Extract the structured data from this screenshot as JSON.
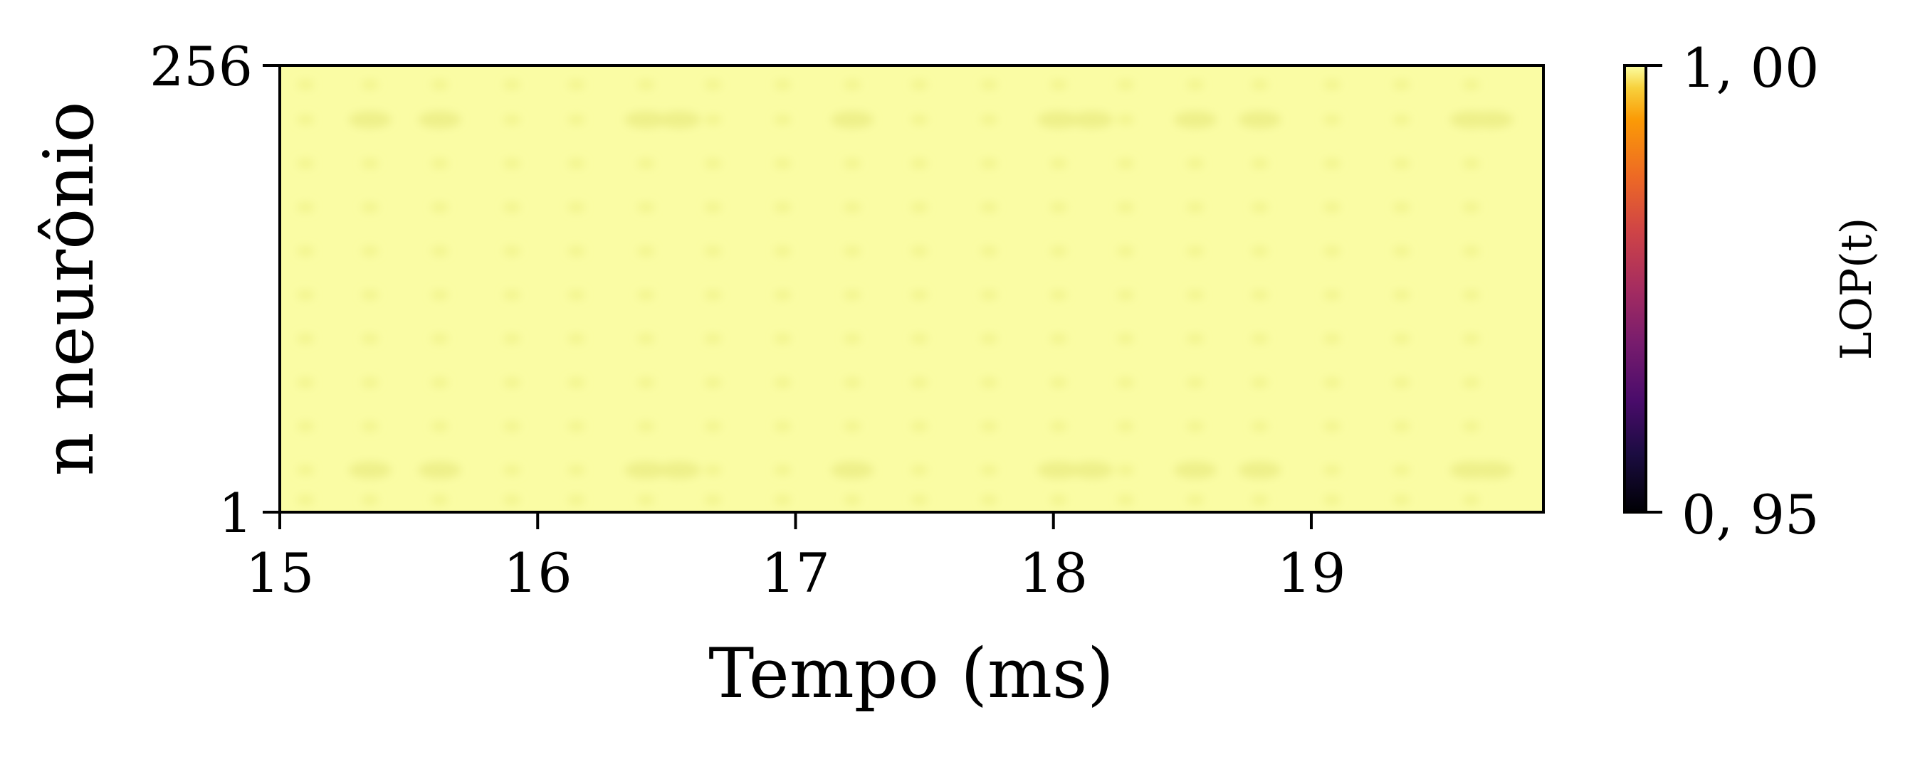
{
  "chart_data": {
    "type": "heatmap",
    "title": "",
    "xlabel": "Tempo (ms)",
    "ylabel": "n neurônio",
    "xlim": [
      15,
      19.9
    ],
    "ylim": [
      1,
      256
    ],
    "x_ticks": [
      15,
      16,
      17,
      18,
      19
    ],
    "x_tick_labels": [
      "15",
      "16",
      "17",
      "18",
      "19"
    ],
    "y_ticks": [
      1,
      256
    ],
    "y_tick_labels": [
      "1",
      "256"
    ],
    "colorbar": {
      "label": "LOP(t)",
      "colormap": "inferno",
      "range": [
        0.95,
        1.0
      ],
      "tick_labels": [
        "1, 00",
        "0, 95"
      ]
    },
    "values_summary": "LOP(t) ≈ 1,00 across all neurons and times; faint periodic dips at regular intervals",
    "colors": {
      "high": "#fafca4",
      "dip": "#f2f48e",
      "strong_dip": "#eef08a"
    },
    "dip_times_ms": [
      15.1,
      15.35,
      15.62,
      15.9,
      16.15,
      16.42,
      16.68,
      16.95,
      17.22,
      17.48,
      17.75,
      18.02,
      18.28,
      18.55,
      18.8,
      19.08,
      19.35,
      19.62
    ],
    "dip_neurons": [
      8,
      25,
      50,
      75,
      100,
      125,
      150,
      175,
      200,
      225,
      245
    ],
    "strong_dip_times_ms": [
      15.35,
      15.62,
      16.42,
      16.55,
      17.22,
      18.02,
      18.15,
      18.55,
      18.8,
      19.62,
      19.7
    ],
    "strong_dip_neurons": [
      25,
      225
    ]
  }
}
